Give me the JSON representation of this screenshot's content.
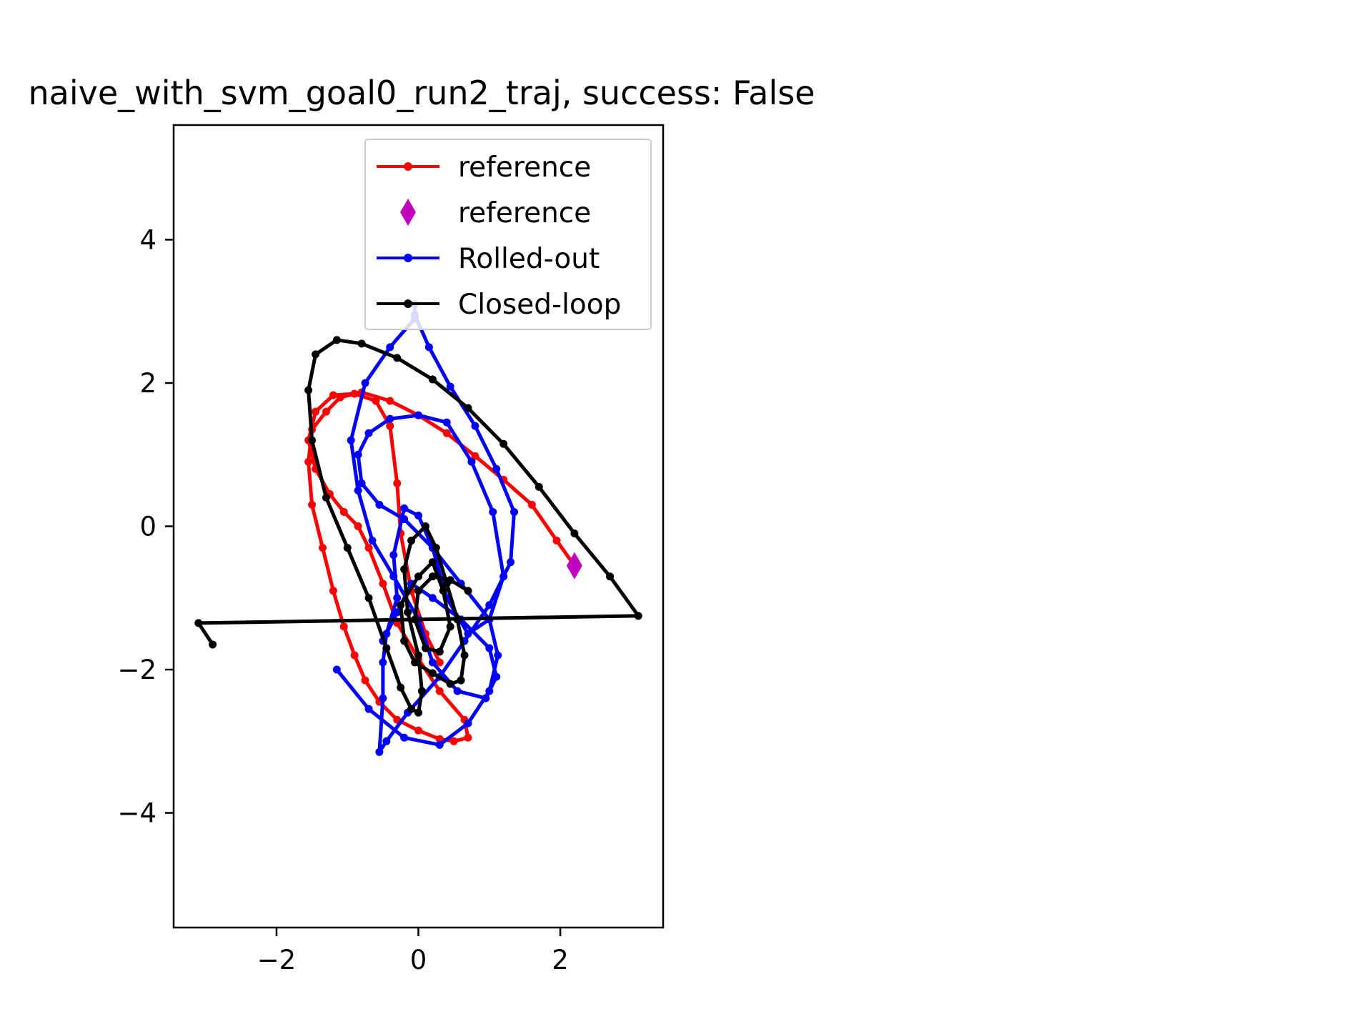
{
  "chart_data": {
    "type": "line",
    "title": "naive_with_svm_goal0_run2_traj, success: False",
    "xlabel": "",
    "ylabel": "",
    "xlim": [
      -3.45,
      3.45
    ],
    "ylim": [
      -5.6,
      5.6
    ],
    "xticks": [
      -2,
      0,
      2
    ],
    "yticks": [
      -4,
      -2,
      0,
      2,
      4
    ],
    "xtick_labels": [
      "−2",
      "0",
      "2"
    ],
    "ytick_labels": [
      "−4",
      "−2",
      "0",
      "2",
      "4"
    ],
    "grid": false,
    "legend_position": "upper right",
    "series": [
      {
        "name": "reference",
        "color": "#ff0000",
        "style": "line-dot",
        "x": [
          2.2,
          1.95,
          1.6,
          1.2,
          0.8,
          0.4,
          0.0,
          -0.4,
          -0.8,
          -1.1,
          -1.3,
          -1.5,
          -1.55,
          -1.5,
          -1.35,
          -1.2,
          -1.05,
          -0.9,
          -0.75,
          -0.55,
          -0.3,
          0.0,
          0.3,
          0.5,
          0.7,
          0.65,
          0.3,
          0.0,
          -0.3,
          -0.5,
          -0.7,
          -0.85,
          -1.05,
          -1.25,
          -1.45,
          -1.55,
          -1.45,
          -1.2,
          -0.9,
          -0.6,
          -0.4,
          -0.3,
          -0.25,
          -0.1,
          0.1,
          0.3
        ],
        "y": [
          -0.55,
          -0.2,
          0.3,
          0.65,
          0.98,
          1.3,
          1.55,
          1.75,
          1.87,
          1.8,
          1.6,
          1.35,
          0.9,
          0.3,
          -0.3,
          -0.9,
          -1.4,
          -1.8,
          -2.15,
          -2.45,
          -2.7,
          -2.85,
          -2.97,
          -3.0,
          -2.95,
          -2.7,
          -2.3,
          -1.85,
          -1.35,
          -0.8,
          -0.3,
          0.0,
          0.2,
          0.45,
          0.8,
          1.2,
          1.6,
          1.83,
          1.85,
          1.75,
          1.4,
          0.6,
          -0.1,
          -0.9,
          -1.5,
          -1.9
        ]
      },
      {
        "name": "reference",
        "color": "#bf00bf",
        "style": "marker-diamond",
        "x": [
          2.2
        ],
        "y": [
          -0.55
        ]
      },
      {
        "name": "Rolled-out",
        "color": "#0000ff",
        "style": "line-dot",
        "x": [
          -1.15,
          -0.7,
          -0.2,
          0.3,
          0.7,
          1.0,
          1.12,
          1.0,
          0.6,
          0.2,
          -0.2,
          -0.55,
          -0.8,
          -0.85,
          -0.7,
          -0.4,
          0.0,
          0.4,
          0.75,
          1.05,
          1.2,
          1.0,
          0.7,
          0.4,
          0.2,
          0.0,
          -0.2,
          -0.35,
          -0.3,
          -0.45,
          -0.5,
          -0.5,
          -0.55,
          -0.45,
          -0.15,
          0.3,
          0.65,
          1.0,
          1.3,
          1.35,
          1.1,
          0.8,
          0.45,
          0.15,
          -0.05,
          -0.05,
          -0.05,
          -0.4,
          -0.75,
          -0.95,
          -0.85,
          -0.65,
          -0.35,
          0.0,
          0.2,
          0.55,
          0.95,
          1.1,
          1.0,
          0.6,
          0.2,
          -0.1,
          -0.3,
          -0.5
        ],
        "y": [
          -2.0,
          -2.55,
          -2.95,
          -3.05,
          -2.75,
          -2.3,
          -1.8,
          -1.3,
          -0.8,
          -0.3,
          0.1,
          0.3,
          0.6,
          1.0,
          1.3,
          1.5,
          1.55,
          1.45,
          0.9,
          0.2,
          -0.7,
          -1.3,
          -1.5,
          -1.0,
          -0.3,
          0.15,
          0.25,
          -0.4,
          -1.0,
          -1.5,
          -1.9,
          -2.4,
          -3.15,
          -3.0,
          -2.6,
          -2.1,
          -1.6,
          -1.1,
          -0.5,
          0.2,
          0.8,
          1.4,
          1.95,
          2.5,
          2.95,
          3.1,
          2.9,
          2.5,
          2.0,
          1.2,
          0.5,
          -0.2,
          -0.7,
          -1.3,
          -1.9,
          -2.3,
          -2.4,
          -2.1,
          -1.7,
          -1.3,
          -1.0,
          -0.8,
          -1.2,
          -1.6
        ]
      },
      {
        "name": "Closed-loop",
        "color": "#000000",
        "style": "line-dot",
        "x": [
          -2.9,
          -3.1,
          3.1,
          2.7,
          2.2,
          1.7,
          1.2,
          0.7,
          0.2,
          -0.3,
          -0.8,
          -1.15,
          -1.45,
          -1.55,
          -1.5,
          -1.3,
          -1.0,
          -0.7,
          -0.45,
          -0.25,
          -0.1,
          0.0,
          0.05,
          0.0,
          -0.15,
          -0.2,
          -0.1,
          0.1,
          0.25,
          0.4,
          0.55,
          0.65,
          0.6,
          0.45,
          0.2,
          -0.05,
          -0.2,
          -0.25,
          0.0,
          0.2,
          0.35,
          0.45,
          0.3,
          0.1,
          -0.05,
          0.0,
          0.2,
          0.45,
          0.7
        ],
        "y": [
          -1.65,
          -1.35,
          -1.25,
          -0.7,
          -0.1,
          0.55,
          1.15,
          1.65,
          2.05,
          2.35,
          2.55,
          2.6,
          2.4,
          1.9,
          1.2,
          0.4,
          -0.3,
          -1.0,
          -1.7,
          -2.25,
          -2.55,
          -2.6,
          -2.3,
          -1.8,
          -1.2,
          -0.6,
          -0.2,
          0.0,
          -0.3,
          -0.8,
          -1.3,
          -1.8,
          -2.15,
          -2.2,
          -2.05,
          -1.9,
          -1.6,
          -1.1,
          -0.7,
          -0.5,
          -0.9,
          -1.4,
          -1.75,
          -1.7,
          -1.3,
          -0.9,
          -0.7,
          -0.75,
          -0.9
        ]
      }
    ]
  }
}
